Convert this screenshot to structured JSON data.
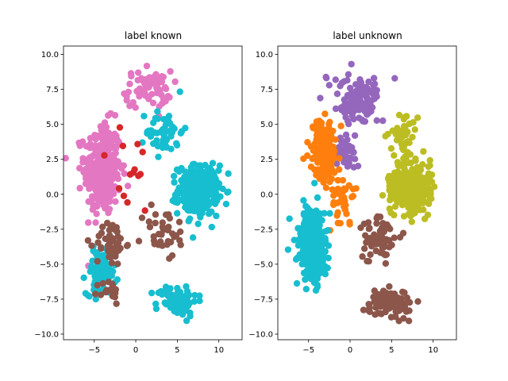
{
  "figure": {
    "background": "#ffffff"
  },
  "chart_data": [
    {
      "type": "scatter",
      "title": "label known",
      "xlabel": "",
      "ylabel": "",
      "xlim": [
        -8.7,
        12.8
      ],
      "ylim": [
        -10.4,
        10.6
      ],
      "xticks": [
        -5,
        0,
        5,
        10
      ],
      "yticks": [
        -10.0,
        -7.5,
        -5.0,
        -2.5,
        0.0,
        2.5,
        5.0,
        7.5,
        10.0
      ],
      "grid": false,
      "legend": "none",
      "clusters": [
        {
          "color": "#e377c2",
          "center": [
            -4.0,
            1.8
          ],
          "spread": [
            2.0,
            3.0
          ],
          "count": 320
        },
        {
          "color": "#e377c2",
          "center": [
            1.5,
            7.5
          ],
          "spread": [
            2.5,
            1.2
          ],
          "count": 70
        },
        {
          "color": "#17becf",
          "center": [
            7.5,
            0.3
          ],
          "spread": [
            2.2,
            1.6
          ],
          "count": 320
        },
        {
          "color": "#17becf",
          "center": [
            -4.2,
            -5.6
          ],
          "spread": [
            1.6,
            1.4
          ],
          "count": 90
        },
        {
          "color": "#17becf",
          "center": [
            5.0,
            -7.6
          ],
          "spread": [
            2.2,
            1.0
          ],
          "count": 80
        },
        {
          "color": "#17becf",
          "center": [
            3.5,
            4.5
          ],
          "spread": [
            2.0,
            1.5
          ],
          "count": 50
        },
        {
          "color": "#8c564b",
          "center": [
            -3.0,
            -3.5
          ],
          "spread": [
            1.6,
            1.5
          ],
          "count": 50
        },
        {
          "color": "#8c564b",
          "center": [
            -3.2,
            -7.0
          ],
          "spread": [
            1.1,
            0.8
          ],
          "count": 20
        },
        {
          "color": "#8c564b",
          "center": [
            3.5,
            -2.8
          ],
          "spread": [
            2.5,
            1.8
          ],
          "count": 35
        },
        {
          "color": "#d62728",
          "center": [
            -1.0,
            1.5
          ],
          "spread": [
            3.5,
            3.0
          ],
          "count": 14
        }
      ]
    },
    {
      "type": "scatter",
      "title": "label unknown",
      "xlabel": "",
      "ylabel": "",
      "xlim": [
        -8.7,
        12.8
      ],
      "ylim": [
        -10.4,
        10.6
      ],
      "xticks": [
        -5,
        0,
        5,
        10
      ],
      "yticks": [
        -10.0,
        -7.5,
        -5.0,
        -2.5,
        0.0,
        2.5,
        5.0,
        7.5,
        10.0
      ],
      "grid": false,
      "legend": "none",
      "clusters": [
        {
          "color": "#9467bd",
          "center": [
            1.0,
            6.8
          ],
          "spread": [
            2.3,
            1.6
          ],
          "count": 130
        },
        {
          "color": "#9467bd",
          "center": [
            -0.5,
            3.0
          ],
          "spread": [
            1.2,
            1.2
          ],
          "count": 40
        },
        {
          "color": "#ff7f0e",
          "center": [
            -3.2,
            3.2
          ],
          "spread": [
            1.5,
            2.0
          ],
          "count": 160
        },
        {
          "color": "#ff7f0e",
          "center": [
            -1.0,
            -0.5
          ],
          "spread": [
            1.2,
            1.5
          ],
          "count": 40
        },
        {
          "color": "#bcbd22",
          "center": [
            7.5,
            0.5
          ],
          "spread": [
            2.2,
            1.6
          ],
          "count": 320
        },
        {
          "color": "#bcbd22",
          "center": [
            6.5,
            4.3
          ],
          "spread": [
            1.5,
            1.2
          ],
          "count": 40
        },
        {
          "color": "#17becf",
          "center": [
            -4.5,
            -3.5
          ],
          "spread": [
            1.6,
            2.6
          ],
          "count": 280
        },
        {
          "color": "#8c564b",
          "center": [
            4.5,
            -7.8
          ],
          "spread": [
            2.4,
            0.9
          ],
          "count": 90
        },
        {
          "color": "#8c564b",
          "center": [
            3.5,
            -3.2
          ],
          "spread": [
            1.8,
            1.5
          ],
          "count": 70
        }
      ]
    }
  ]
}
